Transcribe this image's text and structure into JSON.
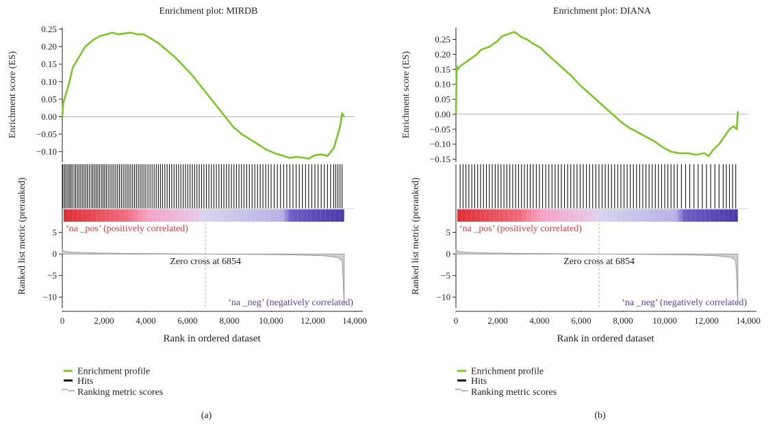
{
  "chart_data": [
    {
      "type": "line",
      "panel_label": "(a)",
      "title": "Enrichment plot: MIRDB",
      "xlabel": "Rank in ordered dataset",
      "es_ylabel": "Enrichment score (ES)",
      "metric_ylabel": "Ranked list metric (preranked)",
      "xlim": [
        0,
        14000
      ],
      "x_ticks": [
        0,
        2000,
        4000,
        6000,
        8000,
        10000,
        12000,
        14000
      ],
      "x_tick_labels": [
        "0",
        "2,000",
        "4,000",
        "6,000",
        "8,000",
        "10,000",
        "12,000",
        "14,000"
      ],
      "es_ylim": [
        -0.13,
        0.255
      ],
      "es_ticks": [
        0.25,
        0.2,
        0.15,
        0.1,
        0.05,
        0.0,
        -0.05,
        -0.1
      ],
      "es_tick_labels": [
        "0.25",
        "0.20",
        "0.15",
        "0.10",
        "0.05",
        "0.00",
        "−0.05",
        "−0.10"
      ],
      "metric_ylim": [
        -12.5,
        7
      ],
      "metric_ticks": [
        5,
        0,
        -5,
        -10
      ],
      "metric_tick_labels": [
        "5",
        "0",
        "−5",
        "−10"
      ],
      "enrichment_profile": {
        "x": [
          0,
          50,
          150,
          300,
          500,
          700,
          900,
          1100,
          1300,
          1500,
          1800,
          2100,
          2400,
          2700,
          3000,
          3300,
          3600,
          3900,
          4200,
          4600,
          5000,
          5400,
          5800,
          6200,
          6600,
          7000,
          7400,
          7800,
          8200,
          8600,
          9000,
          9400,
          9800,
          10200,
          10600,
          10900,
          11200,
          11500,
          11800,
          12100,
          12400,
          12700,
          13000,
          13150,
          13300,
          13400,
          13500
        ],
        "y": [
          0.0,
          0.04,
          0.06,
          0.09,
          0.14,
          0.16,
          0.18,
          0.2,
          0.21,
          0.22,
          0.23,
          0.235,
          0.24,
          0.235,
          0.238,
          0.24,
          0.235,
          0.235,
          0.225,
          0.21,
          0.19,
          0.17,
          0.145,
          0.12,
          0.09,
          0.06,
          0.03,
          0.0,
          -0.03,
          -0.05,
          -0.065,
          -0.08,
          -0.095,
          -0.105,
          -0.112,
          -0.118,
          -0.115,
          -0.117,
          -0.12,
          -0.11,
          -0.108,
          -0.112,
          -0.09,
          -0.06,
          -0.03,
          0.01,
          0.0
        ]
      },
      "hits_x": [
        30,
        110,
        180,
        260,
        330,
        400,
        470,
        560,
        640,
        720,
        800,
        880,
        960,
        1040,
        1120,
        1200,
        1290,
        1380,
        1460,
        1540,
        1620,
        1700,
        1780,
        1870,
        1950,
        2030,
        2110,
        2200,
        2290,
        2380,
        2470,
        2560,
        2650,
        2740,
        2830,
        2920,
        3010,
        3100,
        3190,
        3280,
        3370,
        3460,
        3550,
        3640,
        3730,
        3820,
        3910,
        4000,
        4100,
        4200,
        4300,
        4400,
        4500,
        4600,
        4700,
        4800,
        4910,
        5020,
        5130,
        5240,
        5350,
        5460,
        5570,
        5680,
        5790,
        5900,
        6010,
        6120,
        6230,
        6340,
        6450,
        6560,
        6670,
        6780,
        6900,
        7020,
        7140,
        7260,
        7380,
        7500,
        7620,
        7740,
        7860,
        7980,
        8100,
        8220,
        8340,
        8460,
        8580,
        8700,
        8830,
        8960,
        9090,
        9220,
        9350,
        9480,
        9610,
        9740,
        9870,
        10000,
        10150,
        10300,
        10450,
        10600,
        10750,
        10900,
        11050,
        11200,
        11350,
        11500,
        11650,
        11800,
        11950,
        12100,
        12250,
        12400,
        12550,
        12700,
        12850,
        13000,
        13100,
        13200,
        13300,
        13400
      ],
      "ranking_metric": {
        "x": [
          0,
          100,
          500,
          1500,
          3000,
          5000,
          6854,
          9000,
          11000,
          12500,
          13200,
          13400,
          13450,
          13500
        ],
        "y": [
          1.0,
          0.6,
          0.4,
          0.25,
          0.12,
          0.05,
          0.0,
          -0.08,
          -0.2,
          -0.4,
          -0.8,
          -1.5,
          -6.0,
          -12.0
        ]
      },
      "positive_label": "‘na _pos’ (positively correlated)",
      "negative_label": "‘na _neg’ (negatively correlated)",
      "zero_cross_label": "Zero cross at 6854",
      "zero_cross_x": 6854,
      "legend": [
        "Enrichment profile",
        "Hits",
        "Ranking metric scores"
      ]
    },
    {
      "type": "line",
      "panel_label": "(b)",
      "title": "Enrichment plot: DIANA",
      "xlabel": "Rank in ordered dataset",
      "es_ylabel": "Enrichment score (ES)",
      "metric_ylabel": "Ranked list metric (preranked)",
      "xlim": [
        0,
        14000
      ],
      "x_ticks": [
        0,
        2000,
        4000,
        6000,
        8000,
        10000,
        12000,
        14000
      ],
      "x_tick_labels": [
        "0",
        "2,000",
        "4,000",
        "6,000",
        "8,000",
        "10,000",
        "12,000",
        "14,000"
      ],
      "es_ylim": [
        -0.16,
        0.29
      ],
      "es_ticks": [
        0.25,
        0.2,
        0.15,
        0.1,
        0.05,
        0.0,
        -0.05,
        -0.1,
        -0.15
      ],
      "es_tick_labels": [
        "0.25",
        "0.20",
        "0.15",
        "0.10",
        "0.05",
        "0.00",
        "−0.05",
        "−0.10",
        "−0.15"
      ],
      "metric_ylim": [
        -12.5,
        7
      ],
      "metric_ticks": [
        5,
        0,
        -5,
        -10
      ],
      "metric_tick_labels": [
        "5",
        "0",
        "−5",
        "−10"
      ],
      "enrichment_profile": {
        "x": [
          0,
          40,
          80,
          200,
          400,
          600,
          800,
          1000,
          1200,
          1400,
          1600,
          1800,
          2000,
          2200,
          2400,
          2600,
          2800,
          3000,
          3200,
          3400,
          3700,
          4000,
          4300,
          4700,
          5100,
          5500,
          5900,
          6300,
          6700,
          7100,
          7500,
          7900,
          8300,
          8700,
          9100,
          9500,
          9900,
          10300,
          10700,
          11100,
          11500,
          11900,
          12100,
          12300,
          12600,
          12900,
          13100,
          13300,
          13450,
          13500
        ],
        "y": [
          0.0,
          0.16,
          0.15,
          0.16,
          0.17,
          0.18,
          0.19,
          0.2,
          0.215,
          0.22,
          0.225,
          0.235,
          0.245,
          0.26,
          0.265,
          0.27,
          0.275,
          0.265,
          0.255,
          0.25,
          0.235,
          0.225,
          0.205,
          0.18,
          0.155,
          0.13,
          0.1,
          0.075,
          0.05,
          0.025,
          0.0,
          -0.025,
          -0.045,
          -0.06,
          -0.075,
          -0.09,
          -0.11,
          -0.125,
          -0.13,
          -0.13,
          -0.135,
          -0.13,
          -0.14,
          -0.12,
          -0.1,
          -0.07,
          -0.05,
          -0.04,
          -0.05,
          0.01
        ]
      },
      "hits_x": [
        200,
        340,
        480,
        620,
        760,
        900,
        1040,
        1180,
        1320,
        1460,
        1600,
        1740,
        1880,
        2020,
        2160,
        2300,
        2440,
        2580,
        2720,
        2860,
        3000,
        3140,
        3280,
        3420,
        3560,
        3700,
        3850,
        4000,
        4150,
        4300,
        4450,
        4600,
        4750,
        4900,
        5050,
        5200,
        5350,
        5500,
        5650,
        5800,
        5950,
        6100,
        6250,
        6400,
        6550,
        6700,
        6850,
        7000,
        7150,
        7300,
        7450,
        7600,
        7750,
        7900,
        8050,
        8200,
        8350,
        8500,
        8650,
        8800,
        8950,
        9100,
        9250,
        9400,
        9550,
        9700,
        9850,
        10000,
        10150,
        10300,
        10450,
        10600,
        10800,
        11000,
        11200,
        11400,
        11600,
        11800,
        12000,
        12200,
        12400,
        12600,
        12800,
        12950,
        13100,
        13250,
        13400
      ],
      "ranking_metric": {
        "x": [
          0,
          100,
          500,
          1500,
          3000,
          5000,
          6854,
          9000,
          11000,
          12500,
          13200,
          13400,
          13450,
          13500
        ],
        "y": [
          1.0,
          0.6,
          0.4,
          0.25,
          0.12,
          0.05,
          0.0,
          -0.08,
          -0.2,
          -0.4,
          -0.8,
          -1.5,
          -6.0,
          -12.0
        ]
      },
      "positive_label": "‘na _pos’ (positively correlated)",
      "negative_label": "‘na _neg’ (negatively correlated)",
      "zero_cross_label": "Zero cross at 6854",
      "zero_cross_x": 6854,
      "legend": [
        "Enrichment profile",
        "Hits",
        "Ranking metric scores"
      ]
    }
  ],
  "colors": {
    "enrichment_profile": "#77c726",
    "hits": "#111111",
    "ranking_metric": "#9a9a9a",
    "positive_text": "#e0393c",
    "negative_text": "#5a3ea8",
    "heat_red": "#e02c36",
    "heat_pink": "#f5a3c4",
    "heat_lavender": "#d7d4f0",
    "heat_blue": "#4a3aa8",
    "axis": "#231f20",
    "zero_line": "#bdbdbd"
  }
}
